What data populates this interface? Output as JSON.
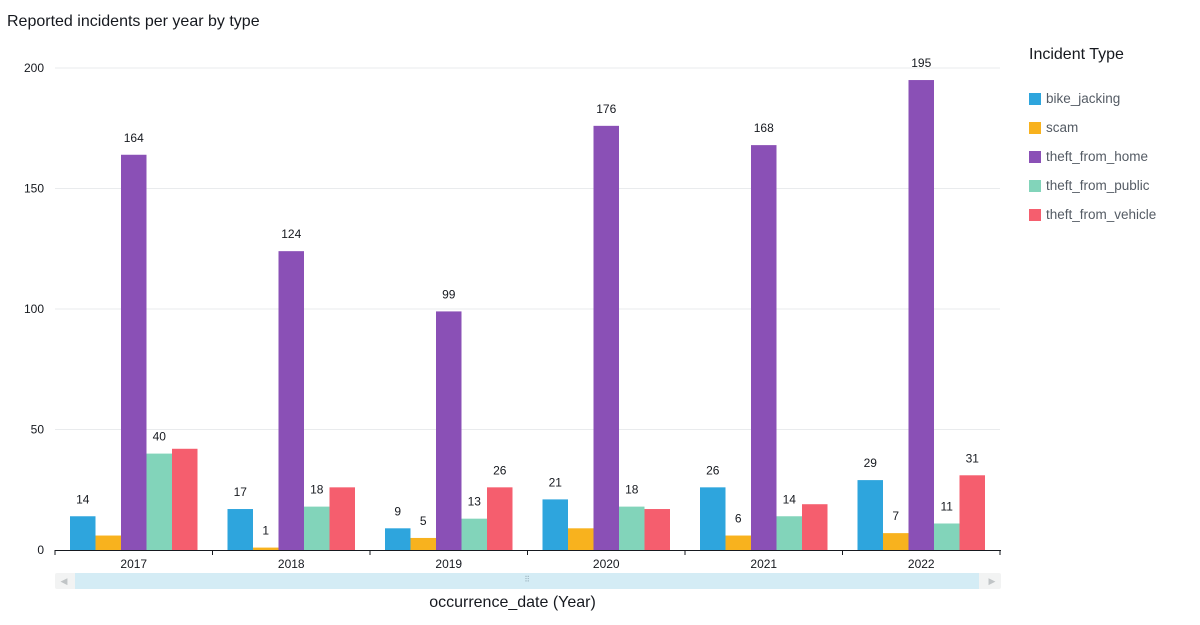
{
  "chart_data": {
    "type": "bar",
    "title": "Reported incidents per year by type",
    "xlabel": "occurrence_date (Year)",
    "ylabel": "",
    "ylim": [
      0,
      200
    ],
    "yticks": [
      0,
      50,
      100,
      150,
      200
    ],
    "grid": true,
    "legend_title": "Incident Type",
    "legend_position": "right",
    "categories": [
      "2017",
      "2018",
      "2019",
      "2020",
      "2021",
      "2022"
    ],
    "series": [
      {
        "name": "bike_jacking",
        "color": "#2ea5dd",
        "values": [
          14,
          17,
          9,
          21,
          26,
          29
        ],
        "labels": [
          true,
          true,
          true,
          true,
          true,
          true
        ]
      },
      {
        "name": "scam",
        "color": "#f8b21e",
        "values": [
          6,
          1,
          5,
          9,
          6,
          7
        ],
        "labels": [
          false,
          true,
          true,
          false,
          true,
          true
        ]
      },
      {
        "name": "theft_from_home",
        "color": "#8a50b6",
        "values": [
          164,
          124,
          99,
          176,
          168,
          195
        ],
        "labels": [
          true,
          true,
          true,
          true,
          true,
          true
        ]
      },
      {
        "name": "theft_from_public",
        "color": "#82d4ba",
        "values": [
          40,
          18,
          13,
          18,
          14,
          11
        ],
        "labels": [
          true,
          true,
          true,
          true,
          true,
          true
        ]
      },
      {
        "name": "theft_from_vehicle",
        "color": "#f55e6e",
        "values": [
          42,
          26,
          26,
          17,
          19,
          31
        ],
        "labels": [
          false,
          false,
          true,
          false,
          false,
          true
        ]
      }
    ]
  },
  "scrollbar": {
    "grip": "⠿",
    "left_arrow": "◀",
    "right_arrow": "▶"
  }
}
